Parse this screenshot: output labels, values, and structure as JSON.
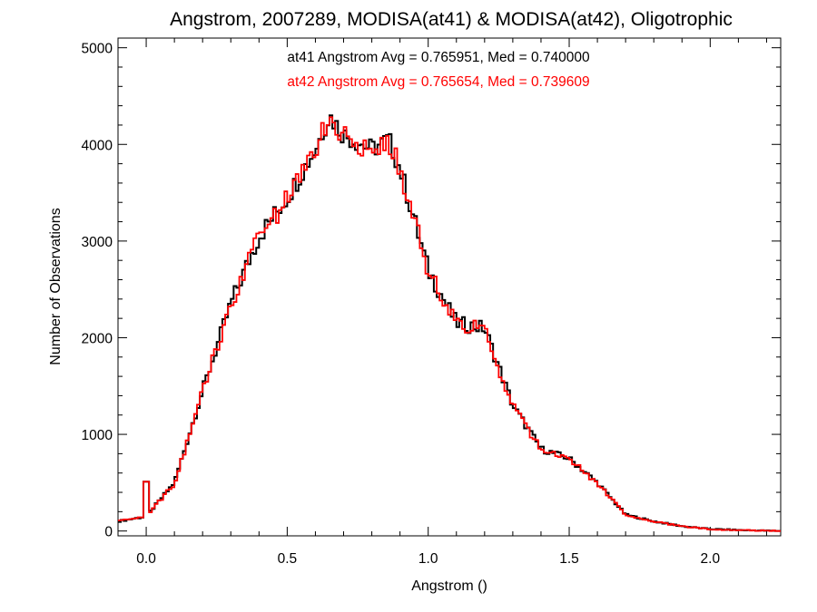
{
  "chart_data": {
    "type": "line",
    "title": "Angstrom, 2007289, MODISA(at41) & MODISA(at42), Oligotrophic",
    "xlabel": "Angstrom ()",
    "ylabel": "Number of Observations",
    "xlim": [
      -0.1,
      2.25
    ],
    "ylim": [
      -50,
      5100
    ],
    "xticks": [
      0.0,
      0.5,
      1.0,
      1.5,
      2.0
    ],
    "xtick_labels": [
      "0.0",
      "0.5",
      "1.0",
      "1.5",
      "2.0"
    ],
    "yticks": [
      0,
      1000,
      2000,
      3000,
      4000,
      5000
    ],
    "ytick_labels": [
      "0",
      "1000",
      "2000",
      "3000",
      "4000",
      "5000"
    ],
    "grid": false,
    "annotations": [
      {
        "text": "at41 Angstrom Avg = 0.765951, Med = 0.740000",
        "color": "#000000"
      },
      {
        "text": "at42 Angstrom Avg = 0.765654, Med = 0.739609",
        "color": "#ff0000"
      }
    ],
    "bin_width": 0.01,
    "series": [
      {
        "color": "#000000",
        "x": [
          -0.1,
          0.0,
          0.1,
          0.2,
          0.3,
          0.4,
          0.5,
          0.6,
          0.65,
          0.7,
          0.8,
          0.86,
          0.9,
          1.0,
          1.1,
          1.2,
          1.3,
          1.4,
          1.5,
          1.6,
          1.7,
          1.8,
          1.9,
          2.0,
          2.1,
          2.25
        ],
        "y": [
          100,
          150,
          500,
          1450,
          2350,
          3050,
          3450,
          3950,
          4300,
          4100,
          3950,
          4050,
          3750,
          2700,
          2150,
          2100,
          1300,
          850,
          750,
          500,
          170,
          100,
          50,
          20,
          10,
          0
        ]
      },
      {
        "color": "#ff0000",
        "x": [
          -0.1,
          0.0,
          0.1,
          0.2,
          0.3,
          0.4,
          0.5,
          0.6,
          0.65,
          0.7,
          0.8,
          0.86,
          0.9,
          1.0,
          1.1,
          1.2,
          1.3,
          1.4,
          1.5,
          1.6,
          1.7,
          1.8,
          1.9,
          2.0,
          2.1,
          2.25
        ],
        "y": [
          100,
          150,
          490,
          1440,
          2340,
          3030,
          3440,
          3940,
          4290,
          4090,
          3940,
          4040,
          3740,
          2690,
          2140,
          2090,
          1290,
          845,
          745,
          495,
          168,
          98,
          48,
          19,
          9,
          0
        ]
      }
    ],
    "spikes": [
      {
        "x": 0.0,
        "y": 510
      }
    ]
  }
}
